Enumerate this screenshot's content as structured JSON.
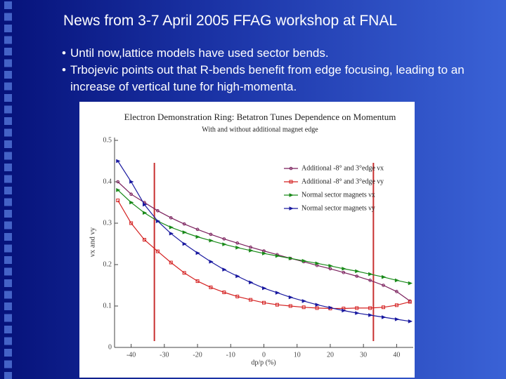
{
  "title": "News from 3-7 April 2005 FFAG workshop at FNAL",
  "bullets": [
    "Until now,lattice models have used sector bends.",
    "Trbojevic points out that R-bends benefit from edge focusing, leading to an increase of vertical tune for high-momenta."
  ],
  "chart_data": {
    "type": "line",
    "title": "Electron Demonstration Ring: Betatron Tunes Dependence on Momentum",
    "subtitle": "With and without additional magnet edge",
    "xlabel": "dp/p (%)",
    "ylabel": "νx and νy",
    "x": [
      -44,
      -40,
      -36,
      -32,
      -28,
      -24,
      -20,
      -16,
      -12,
      -8,
      -4,
      0,
      4,
      8,
      12,
      16,
      20,
      24,
      28,
      32,
      36,
      40,
      44
    ],
    "series": [
      {
        "name": "Additional -8° and 3°edge νx",
        "color": "#7a1f5c",
        "marker": "circle",
        "values": [
          0.4,
          0.37,
          0.35,
          0.33,
          0.313,
          0.298,
          0.285,
          0.273,
          0.262,
          0.252,
          0.242,
          0.233,
          0.224,
          0.215,
          0.207,
          0.198,
          0.19,
          0.181,
          0.172,
          0.162,
          0.15,
          0.135,
          0.112
        ]
      },
      {
        "name": "Additional -8° and 3°edge νy",
        "color": "#d42020",
        "marker": "square",
        "values": [
          0.355,
          0.3,
          0.26,
          0.232,
          0.205,
          0.18,
          0.16,
          0.145,
          0.133,
          0.123,
          0.115,
          0.108,
          0.103,
          0.1,
          0.097,
          0.095,
          0.094,
          0.094,
          0.095,
          0.095,
          0.097,
          0.102,
          0.11
        ]
      },
      {
        "name": "Normal sector magnets νx",
        "color": "#1a8a1a",
        "marker": "triangle",
        "values": [
          0.38,
          0.35,
          0.325,
          0.305,
          0.29,
          0.278,
          0.267,
          0.258,
          0.249,
          0.241,
          0.234,
          0.227,
          0.221,
          0.215,
          0.209,
          0.203,
          0.197,
          0.19,
          0.184,
          0.177,
          0.17,
          0.162,
          0.155
        ]
      },
      {
        "name": "Normal sector magnets νy",
        "color": "#1a1aa0",
        "marker": "triangle",
        "values": [
          0.45,
          0.4,
          0.345,
          0.305,
          0.275,
          0.25,
          0.228,
          0.207,
          0.188,
          0.172,
          0.157,
          0.143,
          0.132,
          0.121,
          0.112,
          0.103,
          0.096,
          0.089,
          0.083,
          0.078,
          0.073,
          0.068,
          0.063
        ]
      }
    ],
    "vlines": [
      -33,
      33
    ],
    "vline_color": "#c83030",
    "xlim": [
      -45,
      45
    ],
    "xticks": [
      -40,
      -30,
      -20,
      -10,
      0,
      10,
      20,
      30,
      40
    ],
    "ylim": [
      0,
      0.5
    ],
    "yticks": [
      0,
      0.1,
      0.2,
      0.3,
      0.4,
      0.5
    ],
    "legend": "upper right",
    "grid": false
  }
}
